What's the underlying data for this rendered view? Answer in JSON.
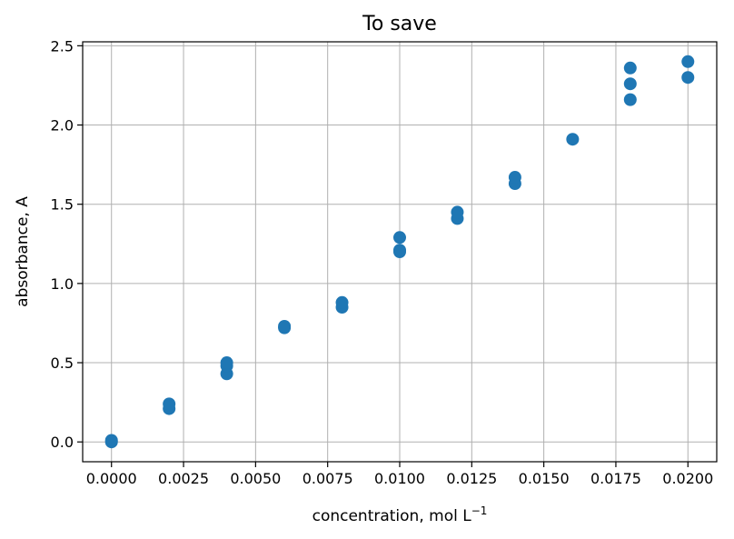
{
  "chart_data": {
    "type": "scatter",
    "title": "To save",
    "xlabel": "concentration, mol L",
    "xlabel_superscript": "−1",
    "ylabel": "absorbance, A",
    "xlim": [
      -0.001,
      0.021
    ],
    "ylim": [
      -0.125,
      2.525
    ],
    "grid": true,
    "marker_color": "#1f77b4",
    "xticks": [
      0.0,
      0.0025,
      0.005,
      0.0075,
      0.01,
      0.0125,
      0.015,
      0.0175,
      0.02
    ],
    "xtick_labels": [
      "0.0000",
      "0.0025",
      "0.0050",
      "0.0075",
      "0.0100",
      "0.0125",
      "0.0150",
      "0.0175",
      "0.0200"
    ],
    "yticks": [
      0.0,
      0.5,
      1.0,
      1.5,
      2.0,
      2.5
    ],
    "ytick_labels": [
      "0.0",
      "0.5",
      "1.0",
      "1.5",
      "2.0",
      "2.5"
    ],
    "points": [
      {
        "x": 0.0,
        "y": 0.0
      },
      {
        "x": 0.0,
        "y": 0.01
      },
      {
        "x": 0.002,
        "y": 0.21
      },
      {
        "x": 0.002,
        "y": 0.24
      },
      {
        "x": 0.004,
        "y": 0.43
      },
      {
        "x": 0.004,
        "y": 0.48
      },
      {
        "x": 0.004,
        "y": 0.5
      },
      {
        "x": 0.006,
        "y": 0.72
      },
      {
        "x": 0.006,
        "y": 0.73
      },
      {
        "x": 0.008,
        "y": 0.85
      },
      {
        "x": 0.008,
        "y": 0.88
      },
      {
        "x": 0.01,
        "y": 1.2
      },
      {
        "x": 0.01,
        "y": 1.21
      },
      {
        "x": 0.01,
        "y": 1.29
      },
      {
        "x": 0.012,
        "y": 1.41
      },
      {
        "x": 0.012,
        "y": 1.45
      },
      {
        "x": 0.014,
        "y": 1.63
      },
      {
        "x": 0.014,
        "y": 1.67
      },
      {
        "x": 0.016,
        "y": 1.91
      },
      {
        "x": 0.018,
        "y": 2.16
      },
      {
        "x": 0.018,
        "y": 2.26
      },
      {
        "x": 0.018,
        "y": 2.36
      },
      {
        "x": 0.02,
        "y": 2.3
      },
      {
        "x": 0.02,
        "y": 2.4
      }
    ]
  }
}
